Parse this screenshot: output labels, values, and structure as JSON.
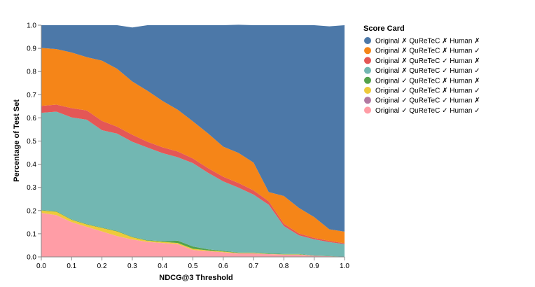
{
  "chart_data": {
    "type": "area",
    "stacked": true,
    "xlabel": "NDCG@3 Threshold",
    "ylabel": "Percentage of Test Set",
    "xlim": [
      0.0,
      1.0
    ],
    "ylim": [
      0.0,
      1.0
    ],
    "xticks": [
      "0.0",
      "0.1",
      "0.2",
      "0.3",
      "0.4",
      "0.5",
      "0.6",
      "0.7",
      "0.8",
      "0.9",
      "1.0"
    ],
    "yticks": [
      "0.0",
      "0.1",
      "0.2",
      "0.3",
      "0.4",
      "0.5",
      "0.6",
      "0.7",
      "0.8",
      "0.9",
      "1.0"
    ],
    "x": [
      0.0,
      0.05,
      0.1,
      0.15,
      0.2,
      0.25,
      0.3,
      0.35,
      0.4,
      0.45,
      0.5,
      0.55,
      0.6,
      0.65,
      0.7,
      0.75,
      0.8,
      0.85,
      0.9,
      0.95,
      1.0
    ],
    "legend": {
      "title": "Score Card",
      "position": "right"
    },
    "series": [
      {
        "name": "Original ✓ QuReTeC ✓ Human ✓",
        "color": "#ff9da6",
        "values": [
          0.19,
          0.18,
          0.15,
          0.13,
          0.11,
          0.09,
          0.075,
          0.065,
          0.06,
          0.055,
          0.03,
          0.025,
          0.02,
          0.015,
          0.015,
          0.012,
          0.01,
          0.01,
          0.005,
          0.003,
          0.0
        ]
      },
      {
        "name": "Original ✓ QuReTeC ✓ Human ✗",
        "color": "#b279a2",
        "values": [
          0,
          0,
          0,
          0,
          0,
          0,
          0,
          0,
          0,
          0,
          0,
          0,
          0,
          0,
          0,
          0,
          0,
          0,
          0,
          0,
          0
        ]
      },
      {
        "name": "Original ✓ QuReTeC ✗ Human ✓",
        "color": "#eeca3b",
        "values": [
          0.01,
          0.015,
          0.01,
          0.01,
          0.015,
          0.02,
          0.01,
          0.005,
          0.005,
          0.005,
          0.005,
          0.003,
          0.003,
          0.002,
          0.002,
          0.001,
          0.001,
          0.001,
          0.0,
          0.0,
          0.0
        ]
      },
      {
        "name": "Original ✓ QuReTeC ✗ Human ✗",
        "color": "#54a24b",
        "values": [
          0.002,
          0.002,
          0.002,
          0.002,
          0.002,
          0.002,
          0.002,
          0.002,
          0.003,
          0.01,
          0.01,
          0.005,
          0.003,
          0.002,
          0.002,
          0.002,
          0.002,
          0.002,
          0.001,
          0.001,
          0.0
        ]
      },
      {
        "name": "Original ✗ QuReTeC ✓ Human ✓",
        "color": "#72b7b2",
        "values": [
          0.42,
          0.43,
          0.44,
          0.45,
          0.42,
          0.42,
          0.41,
          0.4,
          0.38,
          0.36,
          0.36,
          0.33,
          0.3,
          0.28,
          0.25,
          0.21,
          0.12,
          0.08,
          0.07,
          0.06,
          0.055
        ]
      },
      {
        "name": "Original ✗ QuReTeC ✓ Human ✗",
        "color": "#e45756",
        "values": [
          0.03,
          0.03,
          0.04,
          0.04,
          0.04,
          0.03,
          0.03,
          0.025,
          0.025,
          0.025,
          0.02,
          0.02,
          0.02,
          0.02,
          0.018,
          0.015,
          0.01,
          0.008,
          0.006,
          0.005,
          0.004
        ]
      },
      {
        "name": "Original ✗ QuReTeC ✗ Human ✓",
        "color": "#f58518",
        "values": [
          0.25,
          0.24,
          0.24,
          0.23,
          0.26,
          0.25,
          0.23,
          0.22,
          0.2,
          0.18,
          0.16,
          0.15,
          0.13,
          0.13,
          0.12,
          0.04,
          0.12,
          0.11,
          0.09,
          0.05,
          0.05
        ]
      },
      {
        "name": "Original ✗ QuReTeC ✗ Human ✗",
        "color": "#4c78a8",
        "values": [
          0.098,
          0.103,
          0.118,
          0.138,
          0.153,
          0.188,
          0.233,
          0.283,
          0.327,
          0.365,
          0.415,
          0.467,
          0.524,
          0.553,
          0.593,
          0.72,
          0.737,
          0.789,
          0.828,
          0.876,
          0.891
        ]
      }
    ]
  }
}
